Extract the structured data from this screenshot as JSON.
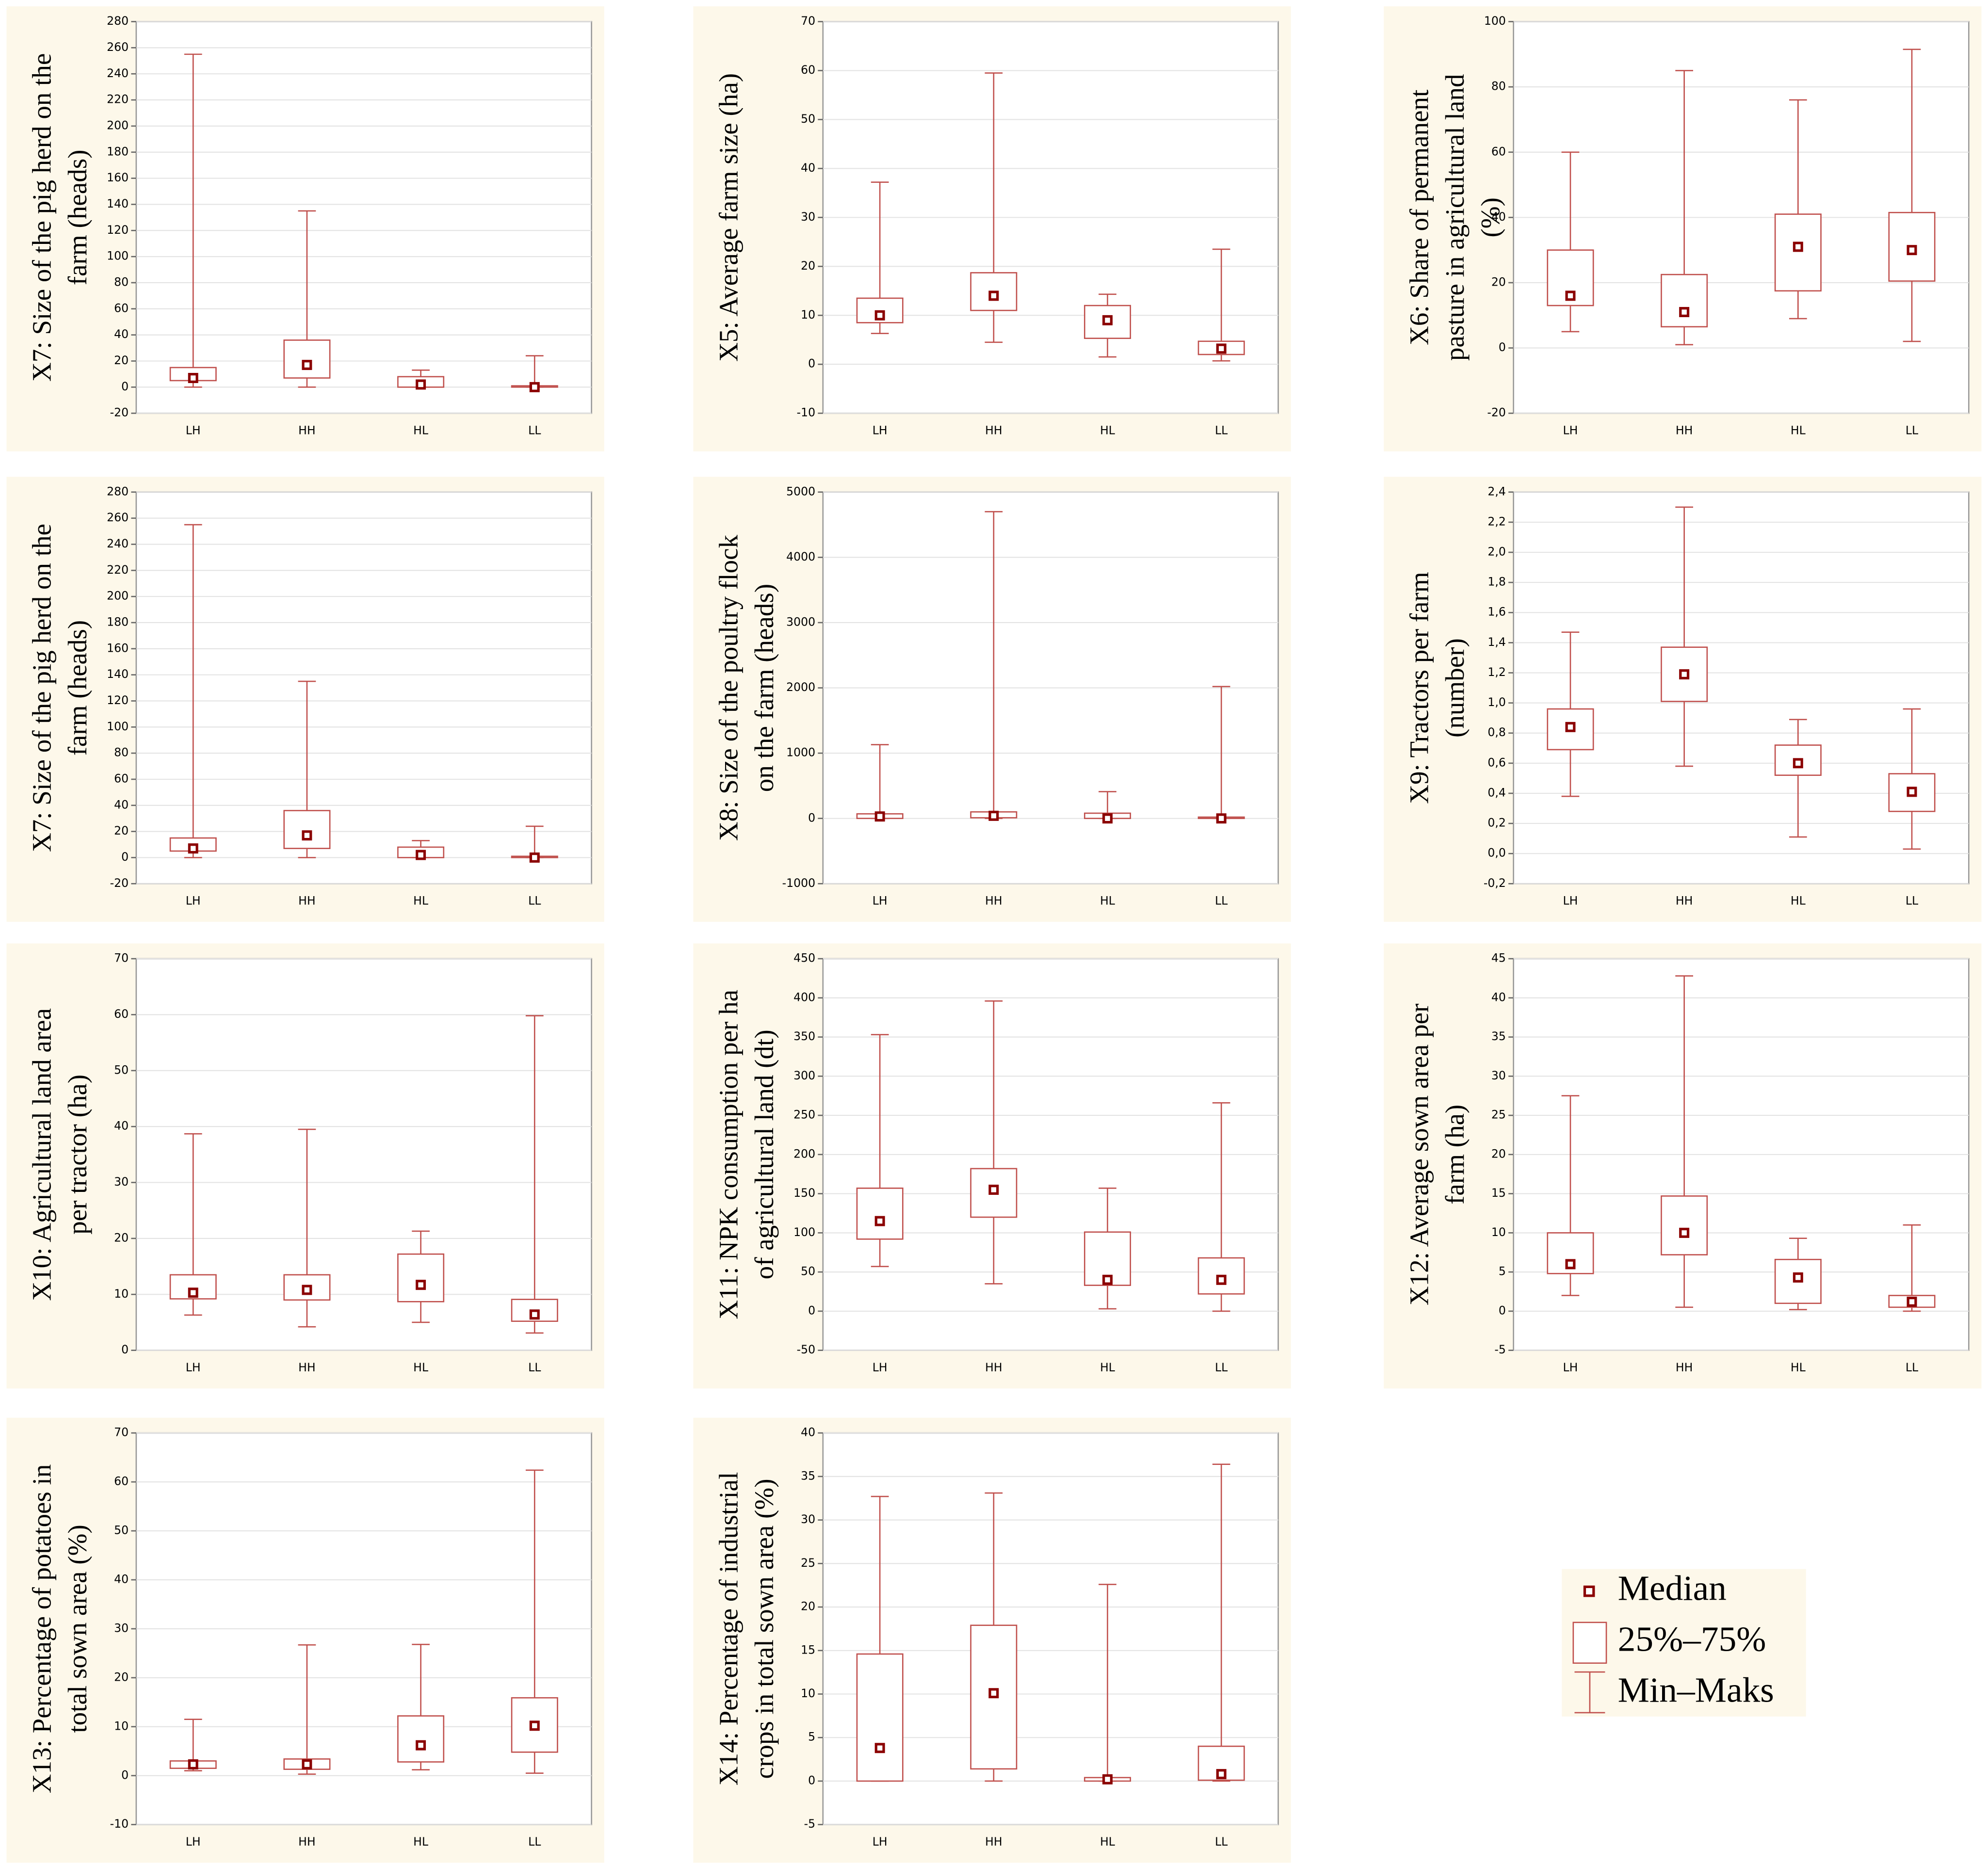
{
  "chart_data": [
    {
      "type": "box",
      "y_label": [
        "X7: Size of the pig herd on the",
        "farm (heads)"
      ],
      "categories": [
        "LH",
        "HH",
        "HL",
        "LL"
      ],
      "min": [
        0,
        0,
        0,
        0
      ],
      "q1": [
        5,
        7,
        0,
        0
      ],
      "median": [
        7,
        17,
        2,
        0
      ],
      "q3": [
        15,
        36,
        8,
        1
      ],
      "max": [
        255,
        135,
        13,
        24
      ],
      "ylim": [
        -20,
        280
      ],
      "yticks": [
        -20,
        0,
        20,
        40,
        60,
        80,
        100,
        120,
        140,
        160,
        180,
        200,
        220,
        240,
        260,
        280
      ],
      "grid": true,
      "color": "#c0504d",
      "median_color": "#8b0000"
    },
    {
      "type": "box",
      "y_label": [
        "X5: Average farm size (ha)"
      ],
      "categories": [
        "LH",
        "HH",
        "HL",
        "LL"
      ],
      "min": [
        6.3,
        4.5,
        1.5,
        0.7
      ],
      "q1": [
        8.5,
        11,
        5.3,
        2
      ],
      "median": [
        10,
        14,
        9,
        3.2
      ],
      "q3": [
        13.5,
        18.7,
        12,
        4.7
      ],
      "max": [
        37.2,
        59.5,
        14.3,
        23.5
      ],
      "ylim": [
        -10,
        70
      ],
      "yticks": [
        -10,
        0,
        10,
        20,
        30,
        40,
        50,
        60,
        70
      ],
      "grid": true,
      "color": "#c0504d",
      "median_color": "#8b0000"
    },
    {
      "type": "box",
      "y_label": [
        "X6: Share of permanent",
        "pasture in agricultural land",
        "(%)"
      ],
      "categories": [
        "LH",
        "HH",
        "HL",
        "LL"
      ],
      "min": [
        5,
        1,
        9,
        2
      ],
      "q1": [
        13,
        6.5,
        17.5,
        20.5
      ],
      "median": [
        16,
        11,
        31,
        30
      ],
      "q3": [
        30,
        22.5,
        41,
        41.5
      ],
      "max": [
        60,
        85,
        76,
        91.5
      ],
      "ylim": [
        -20,
        100
      ],
      "yticks": [
        -20,
        0,
        20,
        40,
        60,
        80,
        100
      ],
      "grid": true,
      "color": "#c0504d",
      "median_color": "#8b0000"
    },
    {
      "type": "box",
      "y_label": [
        "X7: Size of the pig herd on the",
        "farm (heads)"
      ],
      "categories": [
        "LH",
        "HH",
        "HL",
        "LL"
      ],
      "min": [
        0,
        0,
        0,
        0
      ],
      "q1": [
        5,
        7,
        0,
        0
      ],
      "median": [
        7,
        17,
        2,
        0
      ],
      "q3": [
        15,
        36,
        8,
        1
      ],
      "max": [
        255,
        135,
        13,
        24
      ],
      "ylim": [
        -20,
        280
      ],
      "yticks": [
        -20,
        0,
        20,
        40,
        60,
        80,
        100,
        120,
        140,
        160,
        180,
        200,
        220,
        240,
        260,
        280
      ],
      "grid": true,
      "color": "#c0504d",
      "median_color": "#8b0000"
    },
    {
      "type": "box",
      "y_label": [
        "X8: Size of the poultry flock",
        "on the farm (heads)"
      ],
      "categories": [
        "LH",
        "HH",
        "HL",
        "LL"
      ],
      "min": [
        0,
        0,
        0,
        0
      ],
      "q1": [
        0,
        10,
        0,
        0
      ],
      "median": [
        30,
        40,
        0,
        0
      ],
      "q3": [
        70,
        100,
        80,
        20
      ],
      "max": [
        1130,
        4700,
        410,
        2020
      ],
      "ylim": [
        -1000,
        5000
      ],
      "yticks": [
        -1000,
        0,
        1000,
        2000,
        3000,
        4000,
        5000
      ],
      "grid": true,
      "color": "#c0504d",
      "median_color": "#8b0000"
    },
    {
      "type": "box",
      "y_label": [
        "X9: Tractors per farm",
        "(number)"
      ],
      "categories": [
        "LH",
        "HH",
        "HL",
        "LL"
      ],
      "min": [
        0.38,
        0.58,
        0.11,
        0.03
      ],
      "q1": [
        0.69,
        1.01,
        0.52,
        0.28
      ],
      "median": [
        0.84,
        1.19,
        0.6,
        0.41
      ],
      "q3": [
        0.96,
        1.37,
        0.72,
        0.53
      ],
      "max": [
        1.47,
        2.3,
        0.89,
        0.96
      ],
      "ylim": [
        -0.2,
        2.4
      ],
      "yticks": [
        {
          "value": -0.2,
          "label": "-0,2"
        },
        {
          "value": 0,
          "label": "0,0"
        },
        {
          "value": 0.2,
          "label": "0,2"
        },
        {
          "value": 0.4,
          "label": "0,4"
        },
        {
          "value": 0.6,
          "label": "0,6"
        },
        {
          "value": 0.8,
          "label": "0,8"
        },
        {
          "value": 1,
          "label": "1,0"
        },
        {
          "value": 1.2,
          "label": "1,2"
        },
        {
          "value": 1.4,
          "label": "1,4"
        },
        {
          "value": 1.6,
          "label": "1,6"
        },
        {
          "value": 1.8,
          "label": "1,8"
        },
        {
          "value": 2,
          "label": "2,0"
        },
        {
          "value": 2.2,
          "label": "2,2"
        },
        {
          "value": 2.4,
          "label": "2,4"
        }
      ],
      "grid": true,
      "color": "#c0504d",
      "median_color": "#8b0000"
    },
    {
      "type": "box",
      "y_label": [
        "X10: Agricultural land area",
        "per tractor (ha)"
      ],
      "categories": [
        "LH",
        "HH",
        "HL",
        "LL"
      ],
      "min": [
        6.3,
        4.2,
        5,
        3.1
      ],
      "q1": [
        9.2,
        9,
        8.7,
        5.2
      ],
      "median": [
        10.3,
        10.8,
        11.7,
        6.4
      ],
      "q3": [
        13.5,
        13.5,
        17.2,
        9.1
      ],
      "max": [
        38.7,
        39.5,
        21.3,
        59.8
      ],
      "ylim": [
        0,
        70
      ],
      "yticks": [
        0,
        10,
        20,
        30,
        40,
        50,
        60,
        70
      ],
      "grid": true,
      "color": "#c0504d",
      "median_color": "#8b0000"
    },
    {
      "type": "box",
      "y_label": [
        "X11: NPK consumption per ha",
        "of agricultural land (dt)"
      ],
      "categories": [
        "LH",
        "HH",
        "HL",
        "LL"
      ],
      "min": [
        57,
        35,
        3,
        0
      ],
      "q1": [
        92,
        120,
        33,
        22
      ],
      "median": [
        115,
        155,
        40,
        40
      ],
      "q3": [
        157,
        182,
        101,
        68
      ],
      "max": [
        353,
        396,
        157,
        266
      ],
      "ylim": [
        -50,
        450
      ],
      "yticks": [
        -50,
        0,
        50,
        100,
        150,
        200,
        250,
        300,
        350,
        400,
        450
      ],
      "grid": true,
      "color": "#c0504d",
      "median_color": "#8b0000"
    },
    {
      "type": "box",
      "y_label": [
        "X12: Average sown area per",
        "farm (ha)"
      ],
      "categories": [
        "LH",
        "HH",
        "HL",
        "LL"
      ],
      "min": [
        2,
        0.5,
        0.2,
        0
      ],
      "q1": [
        4.8,
        7.2,
        1,
        0.5
      ],
      "median": [
        6,
        10,
        4.3,
        1.2
      ],
      "q3": [
        10,
        14.7,
        6.6,
        2
      ],
      "max": [
        27.5,
        42.8,
        9.3,
        11
      ],
      "ylim": [
        -5,
        45
      ],
      "yticks": [
        -5,
        0,
        5,
        10,
        15,
        20,
        25,
        30,
        35,
        40,
        45
      ],
      "grid": true,
      "color": "#c0504d",
      "median_color": "#8b0000"
    },
    {
      "type": "box",
      "y_label": [
        "X13: Percentage of potatoes in",
        "total sown area (%)"
      ],
      "categories": [
        "LH",
        "HH",
        "HL",
        "LL"
      ],
      "min": [
        1,
        0.3,
        1.2,
        0.5
      ],
      "q1": [
        1.5,
        1.3,
        2.8,
        4.8
      ],
      "median": [
        2.3,
        2.3,
        6.2,
        10.2
      ],
      "q3": [
        3,
        3.4,
        12.2,
        15.9
      ],
      "max": [
        11.5,
        26.7,
        26.8,
        62.4
      ],
      "ylim": [
        -10,
        70
      ],
      "yticks": [
        -10,
        0,
        10,
        20,
        30,
        40,
        50,
        60,
        70
      ],
      "grid": true,
      "color": "#c0504d",
      "median_color": "#8b0000"
    },
    {
      "type": "box",
      "y_label": [
        "X14: Percentage of industrial",
        "crops in total sown area (%)"
      ],
      "categories": [
        "LH",
        "HH",
        "HL",
        "LL"
      ],
      "min": [
        0,
        0,
        0,
        0
      ],
      "q1": [
        0,
        1.4,
        0,
        0.1
      ],
      "median": [
        3.8,
        10.1,
        0.2,
        0.8
      ],
      "q3": [
        14.6,
        17.9,
        0.4,
        4
      ],
      "max": [
        32.7,
        33.1,
        22.6,
        36.4
      ],
      "ylim": [
        -5,
        40
      ],
      "yticks": [
        -5,
        0,
        5,
        10,
        15,
        20,
        25,
        30,
        35,
        40
      ],
      "grid": true,
      "color": "#c0504d",
      "median_color": "#8b0000"
    }
  ],
  "legend": {
    "median": "Median",
    "box": "25%–75%",
    "whisker": "Min–Maks"
  }
}
